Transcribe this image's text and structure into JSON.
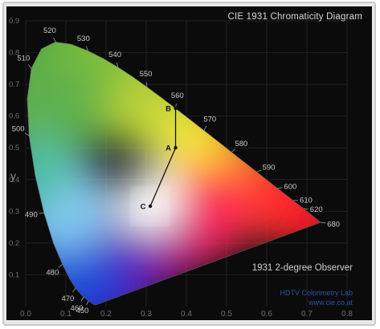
{
  "diagram": {
    "title": "CIE 1931 Chromaticity Diagram",
    "observer_caption": "1931 2-degree Observer",
    "credit_lines": [
      "HDTV Colorimetry Lab",
      "www.cie.co.at"
    ],
    "y_axis_label": "y",
    "y_tick_labels": [
      "0.9",
      "0.8",
      "0.7",
      "0.6",
      "0.5",
      "0.4",
      "0.3",
      "0.2",
      "0.1"
    ],
    "x_tick_labels": [
      "0.0",
      "0.1",
      "0.2",
      "0.3",
      "0.4",
      "0.5",
      "0.6",
      "0.7",
      "0.8"
    ],
    "wavelength_labels": [
      {
        "nm": "520",
        "xy": [
          0.0743,
          0.8338
        ]
      },
      {
        "nm": "530",
        "xy": [
          0.1547,
          0.8059
        ]
      },
      {
        "nm": "540",
        "xy": [
          0.2296,
          0.7543
        ]
      },
      {
        "nm": "550",
        "xy": [
          0.3016,
          0.6923
        ]
      },
      {
        "nm": "560",
        "xy": [
          0.3731,
          0.6245
        ]
      },
      {
        "nm": "570",
        "xy": [
          0.4441,
          0.5547
        ]
      },
      {
        "nm": "580",
        "xy": [
          0.5125,
          0.4866
        ]
      },
      {
        "nm": "590",
        "xy": [
          0.5752,
          0.4242
        ]
      },
      {
        "nm": "600",
        "xy": [
          0.627,
          0.3725
        ]
      },
      {
        "nm": "610",
        "xy": [
          0.6658,
          0.334
        ]
      },
      {
        "nm": "620",
        "xy": [
          0.6915,
          0.3083
        ]
      },
      {
        "nm": "680",
        "xy": [
          0.7347,
          0.2653
        ]
      },
      {
        "nm": "490",
        "xy": [
          0.0454,
          0.295
        ]
      },
      {
        "nm": "480",
        "xy": [
          0.0913,
          0.1327
        ]
      },
      {
        "nm": "470",
        "xy": [
          0.1241,
          0.0578
        ]
      },
      {
        "nm": "460",
        "xy": [
          0.144,
          0.0297
        ]
      },
      {
        "nm": "450",
        "xy": [
          0.1566,
          0.0177
        ]
      },
      {
        "nm": "510",
        "xy": [
          0.0139,
          0.7502
        ]
      },
      {
        "nm": "500",
        "xy": [
          0.0082,
          0.5384
        ]
      }
    ],
    "points": [
      {
        "label": "B",
        "xy": [
          0.3731,
          0.6245
        ]
      },
      {
        "label": "A",
        "xy": [
          0.3731,
          0.5
        ]
      },
      {
        "label": "C",
        "xy": [
          0.3101,
          0.3162
        ]
      }
    ],
    "colors": {
      "background": "#0b0b0c",
      "grid": "#2a2a2a",
      "tick": "#6e6e6e",
      "label": "#c8c8c8",
      "credit": "#355dbd"
    }
  }
}
